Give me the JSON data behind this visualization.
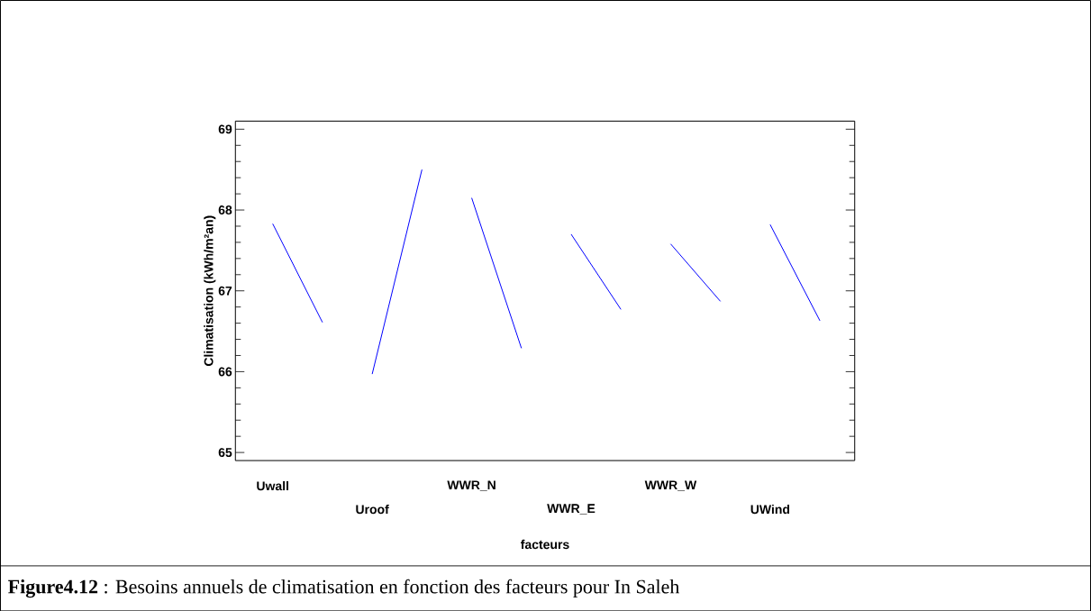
{
  "chart_data": {
    "type": "line",
    "xlabel": "facteurs",
    "ylabel": "Climatisation (kWh/m²an)",
    "categories": [
      "Uwall",
      null,
      "Uroof",
      null,
      "WWR_N",
      null,
      "WWR_E",
      null,
      "WWR_W",
      null,
      "UWind",
      null
    ],
    "series": [
      {
        "color": "#0000ff",
        "values": [
          67.83,
          66.61,
          null,
          null,
          null,
          null,
          null,
          null,
          null,
          null,
          null,
          null
        ]
      },
      {
        "color": "#0000ff",
        "values": [
          null,
          null,
          65.97,
          68.5,
          null,
          null,
          null,
          null,
          null,
          null,
          null,
          null
        ]
      },
      {
        "color": "#0000ff",
        "values": [
          null,
          null,
          null,
          null,
          68.15,
          66.29,
          null,
          null,
          null,
          null,
          null,
          null
        ]
      },
      {
        "color": "#0000ff",
        "values": [
          null,
          null,
          null,
          null,
          null,
          null,
          67.7,
          66.77,
          null,
          null,
          null,
          null
        ]
      },
      {
        "color": "#0000ff",
        "values": [
          null,
          null,
          null,
          null,
          null,
          null,
          null,
          null,
          67.58,
          66.87,
          null,
          null
        ]
      },
      {
        "color": "#0000ff",
        "values": [
          null,
          null,
          null,
          null,
          null,
          null,
          null,
          null,
          null,
          null,
          67.82,
          66.63
        ]
      }
    ],
    "ylim": [
      64.9,
      69.1
    ],
    "yticks": [
      65,
      66,
      67,
      68,
      69
    ],
    "annotations": [
      "**Figure4.12** : Besoins annuels de climatisation en fonction des facteurs pour In Saleh"
    ]
  }
}
